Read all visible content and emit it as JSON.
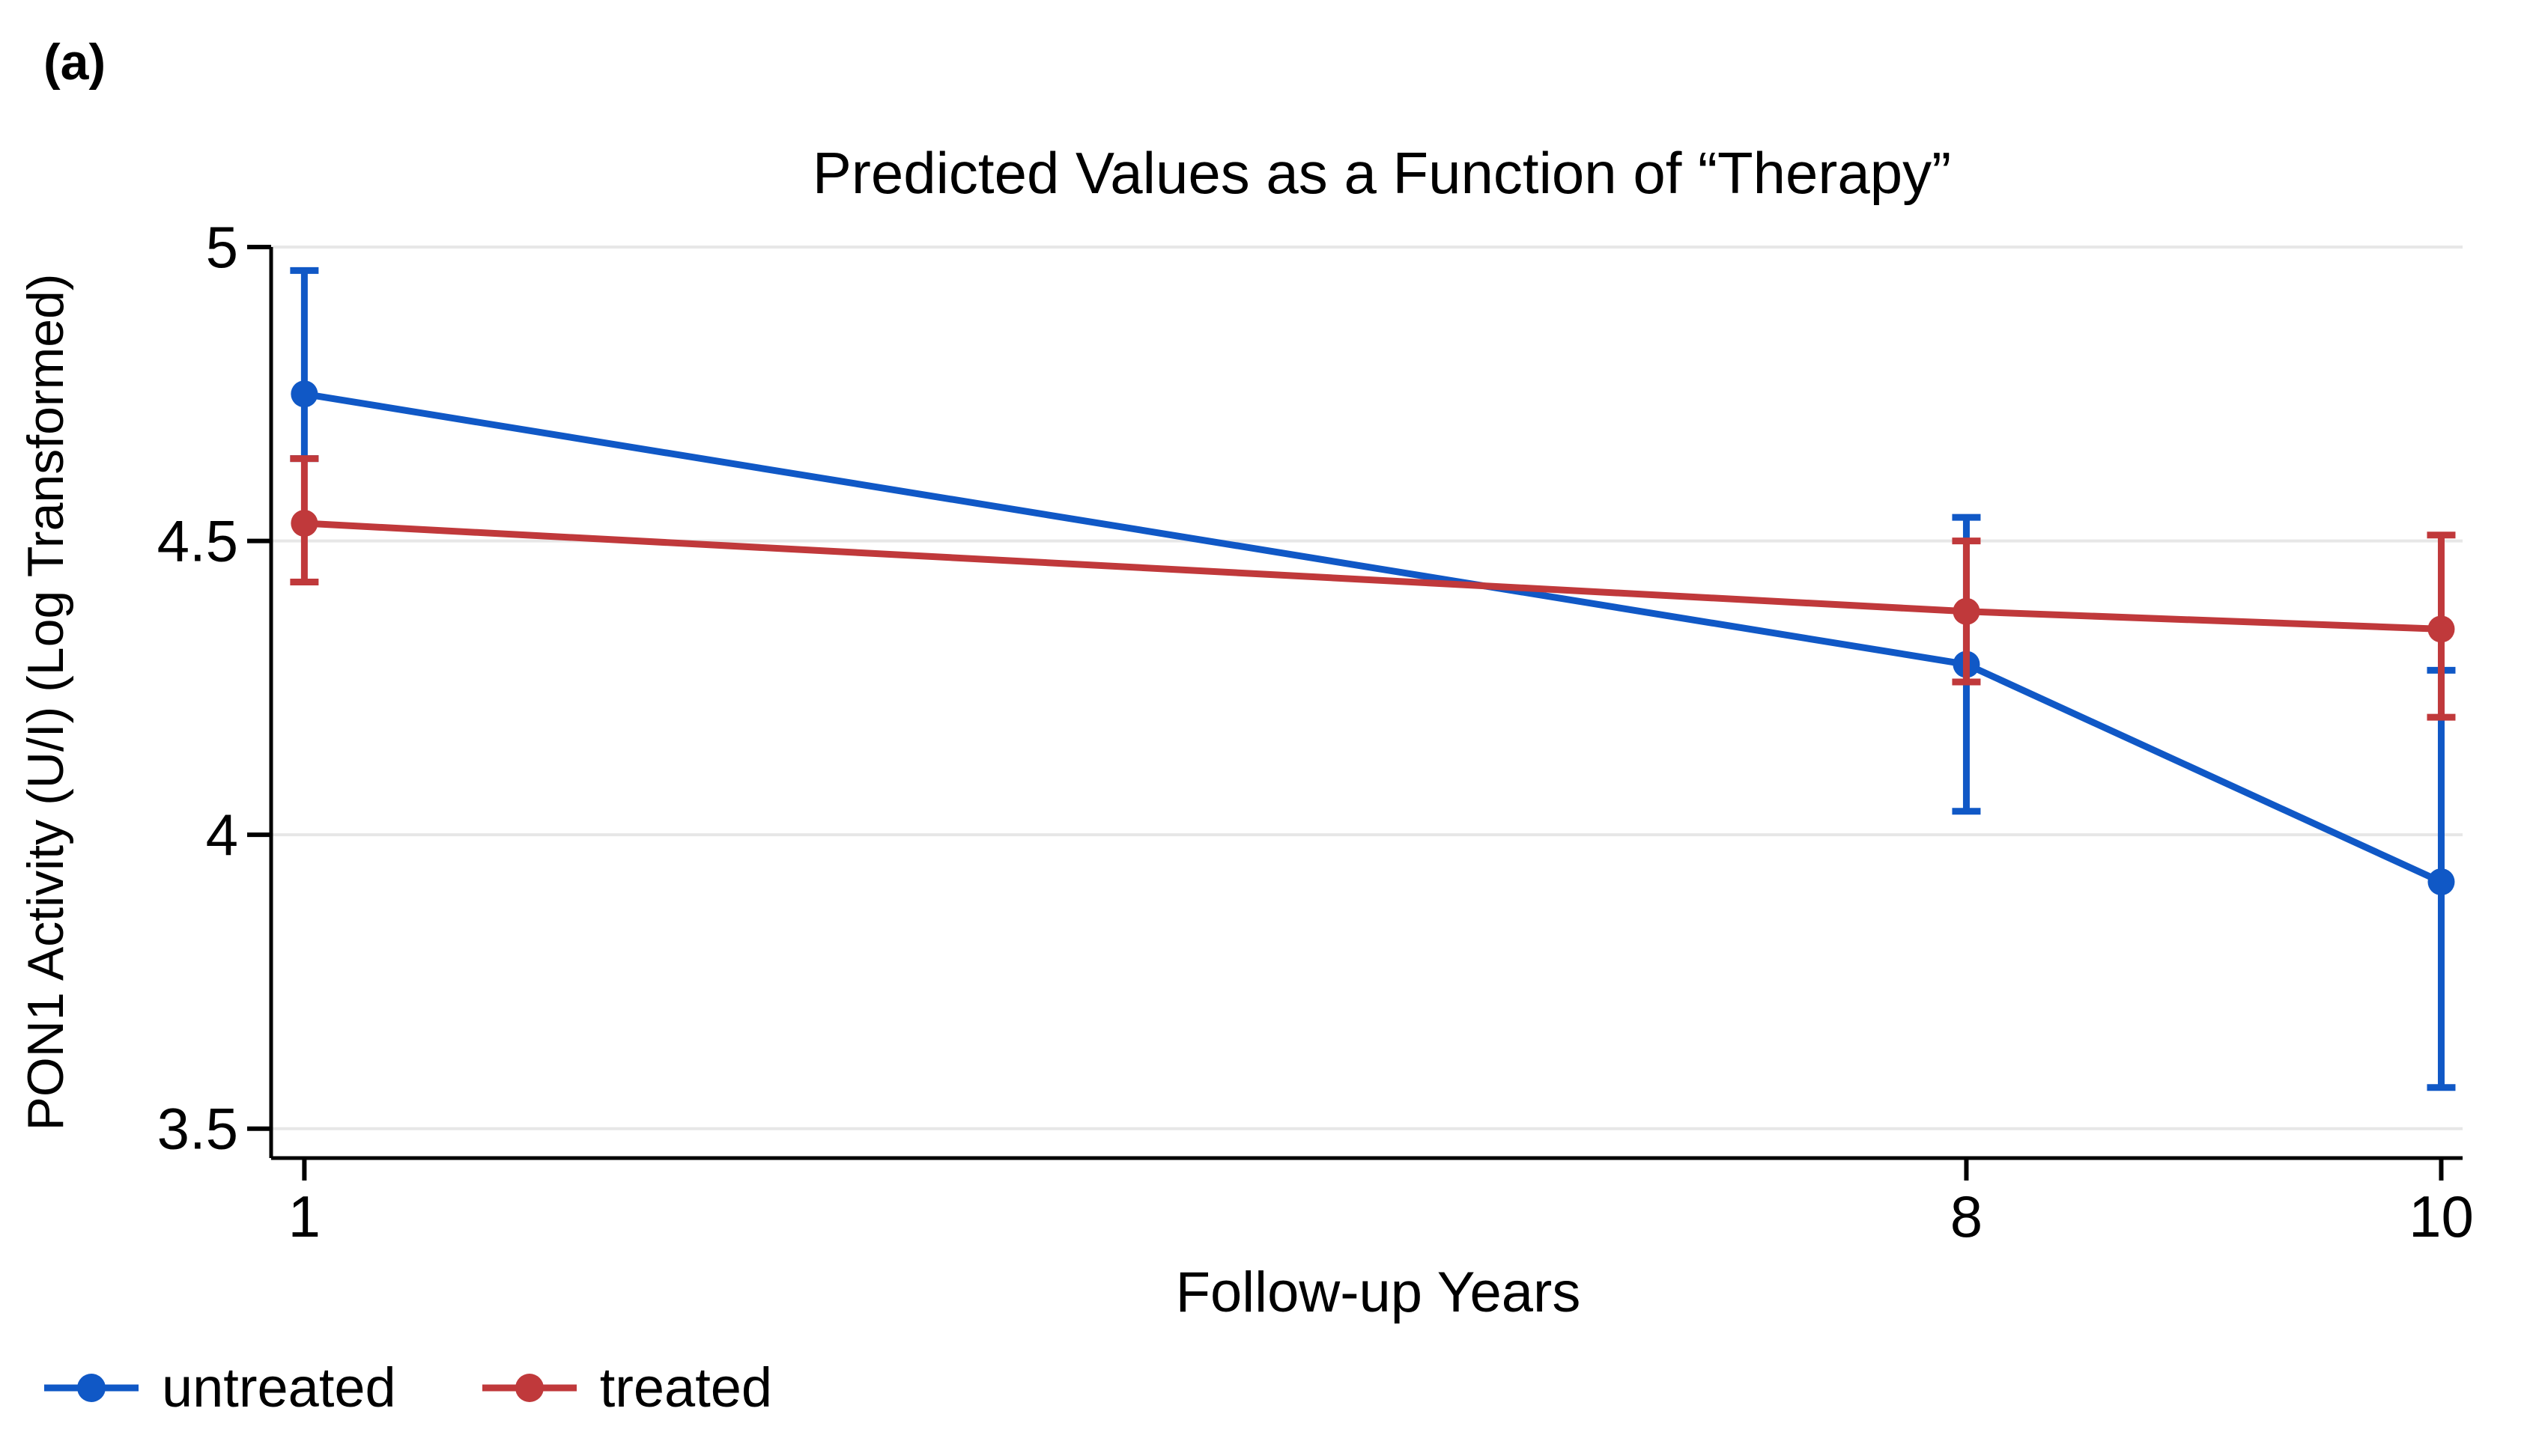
{
  "figure": {
    "panel_label": "(a)"
  },
  "chart_data": {
    "type": "line",
    "title": "Predicted Values as a Function of “Therapy”",
    "xlabel": "Follow-up Years",
    "ylabel": "PON1 Activity (U/I) (Log Transformed)",
    "x": [
      1,
      8,
      10
    ],
    "xtick_labels": [
      "1",
      "8",
      "10"
    ],
    "yticks": [
      5,
      4.5,
      4,
      3.5
    ],
    "ytick_labels": [
      "5",
      "4.5",
      "4",
      "3.5"
    ],
    "xlim": [
      0.86,
      10.09
    ],
    "ylim": [
      3.45,
      5.0
    ],
    "grid": true,
    "legend_position": "bottom-left",
    "error_bars": true,
    "series": [
      {
        "name": "untreated",
        "color": "#1058c6",
        "values": [
          4.75,
          4.29,
          3.92
        ],
        "ci_low": [
          4.64,
          4.04,
          3.57
        ],
        "ci_high": [
          4.96,
          4.54,
          4.28
        ]
      },
      {
        "name": "treated",
        "color": "#c0393b",
        "values": [
          4.53,
          4.38,
          4.35
        ],
        "ci_low": [
          4.43,
          4.26,
          4.2
        ],
        "ci_high": [
          4.64,
          4.5,
          4.51
        ]
      }
    ]
  },
  "colors": {
    "grid": "#e7e7e7",
    "axis": "#000000",
    "background": "#ffffff"
  }
}
